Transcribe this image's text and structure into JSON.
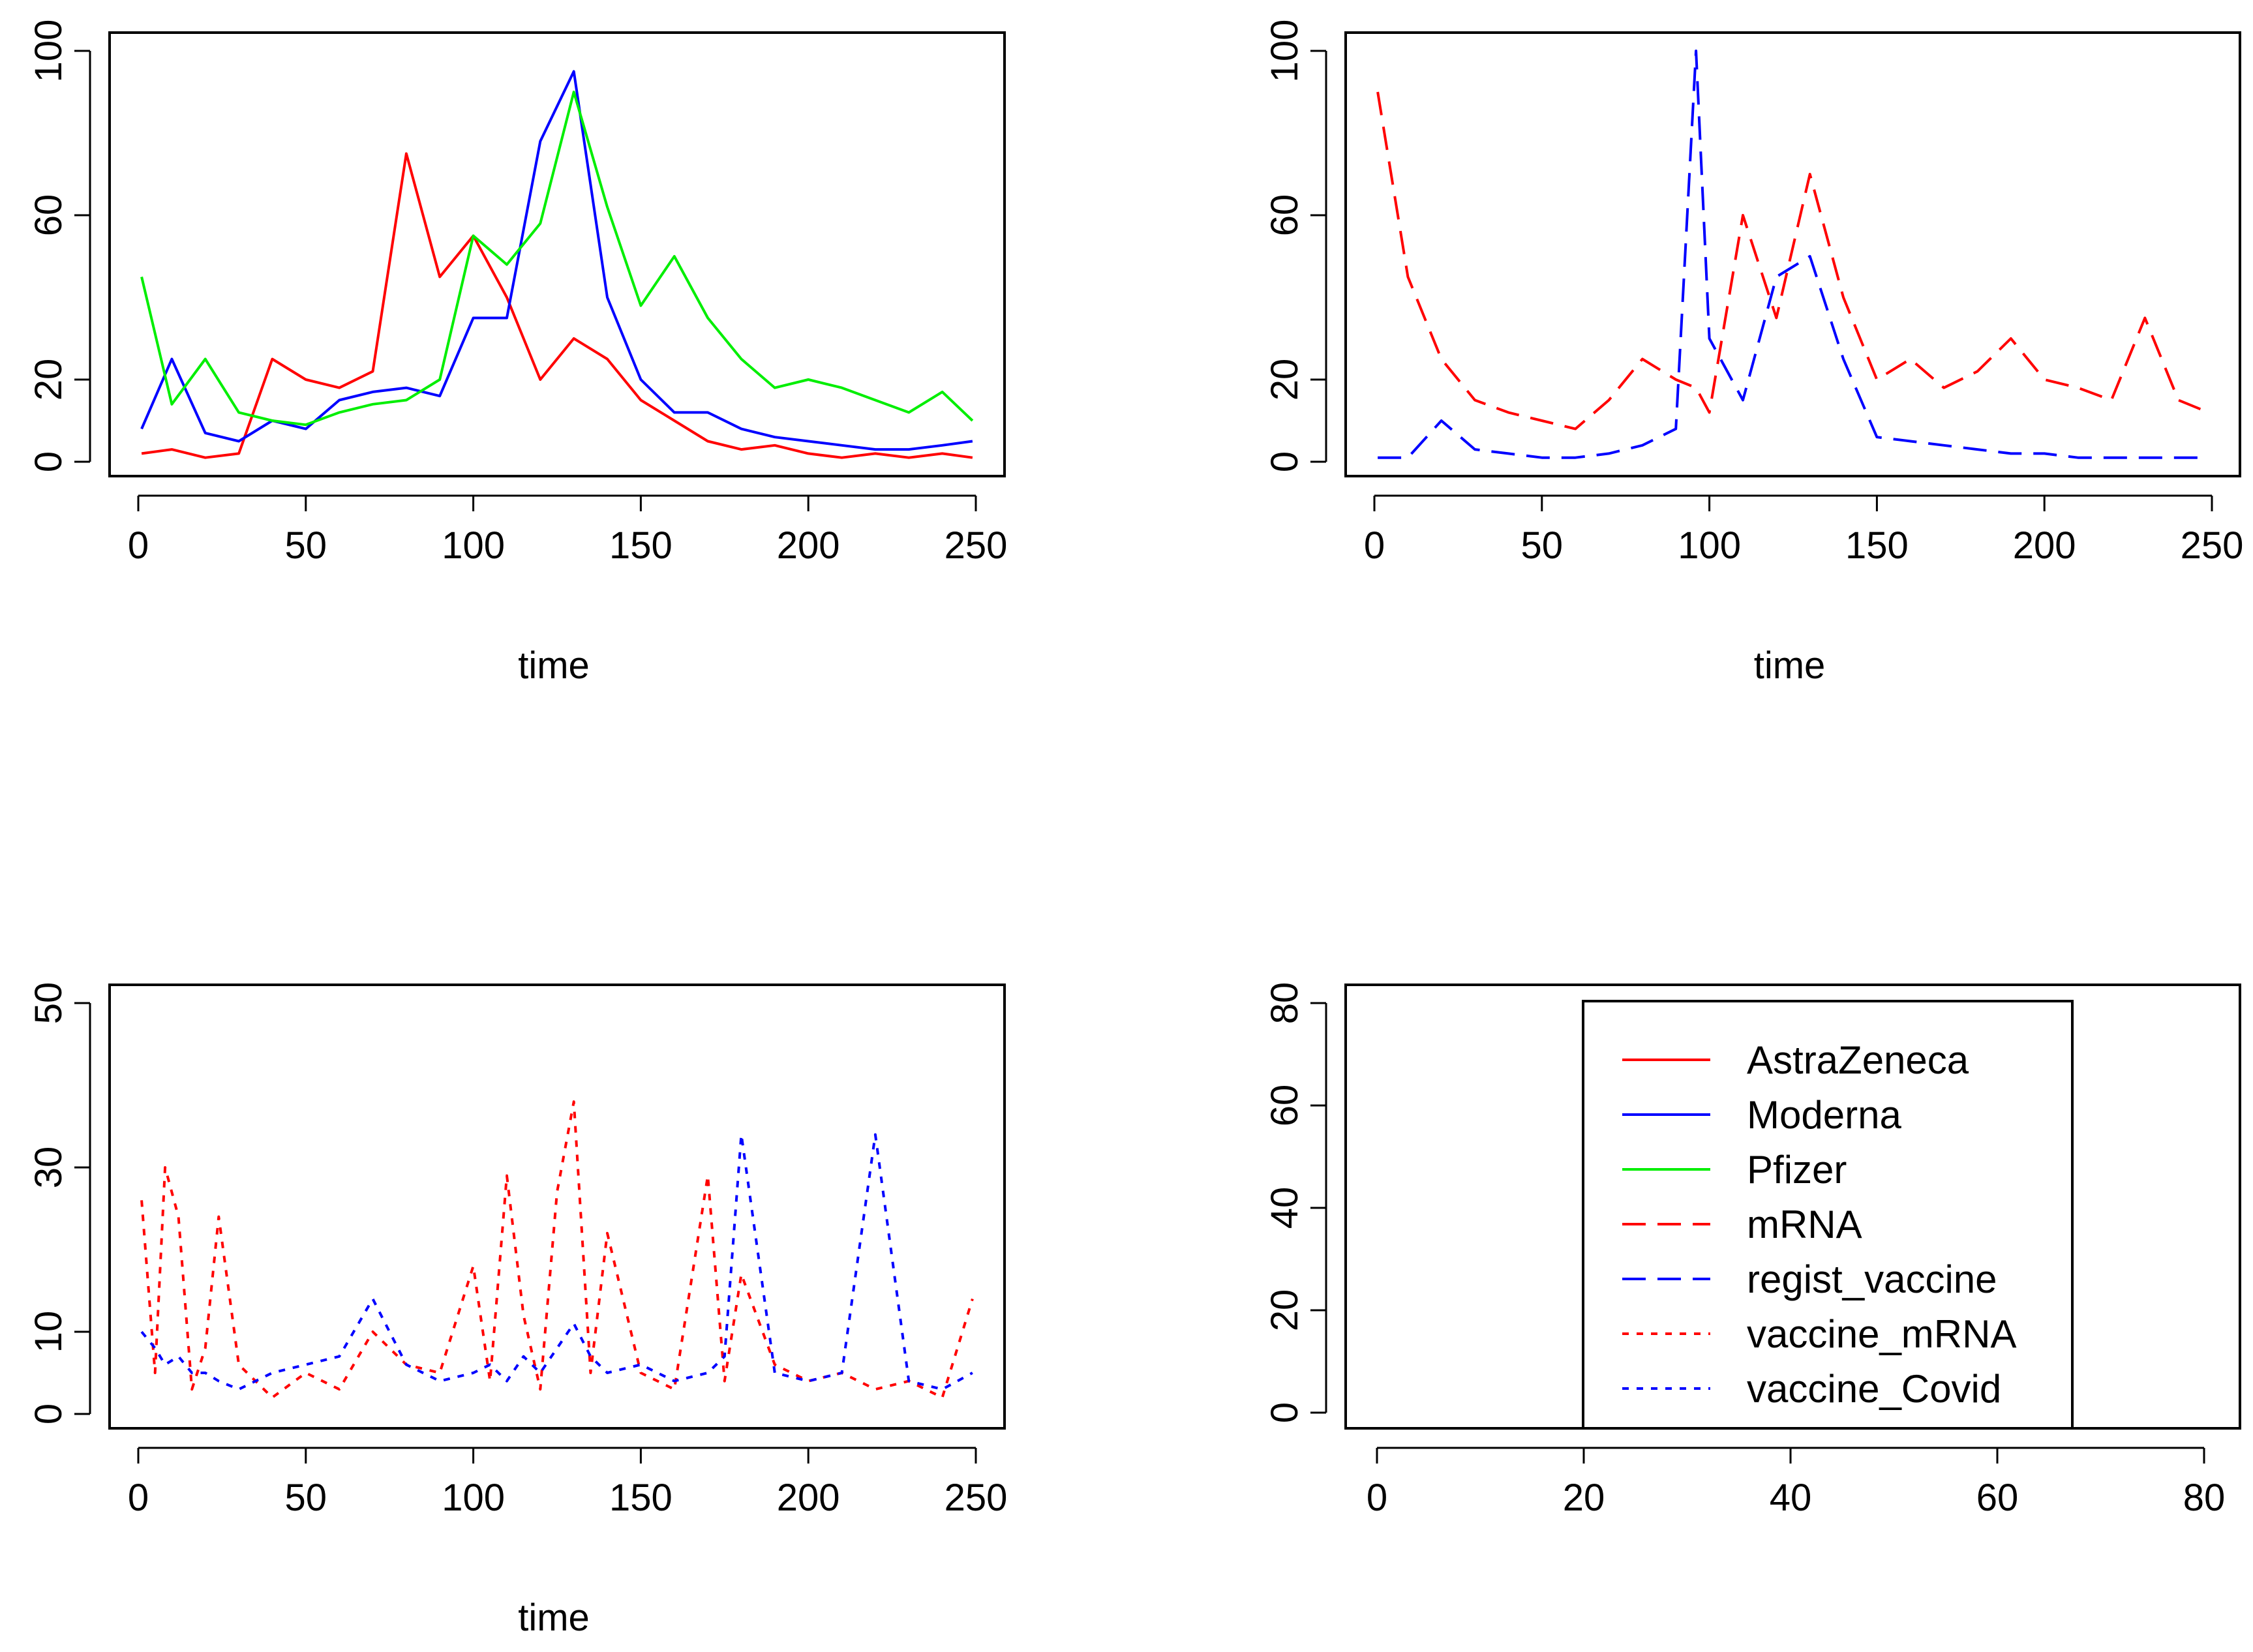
{
  "chart_data": [
    {
      "type": "line",
      "panel": "top-left",
      "xlabel": "time",
      "ylabel": "",
      "xlim": [
        0,
        250
      ],
      "ylim": [
        0,
        100
      ],
      "xticks": [
        "0",
        "50",
        "100",
        "150",
        "200",
        "250"
      ],
      "yticks": [
        "0",
        "20",
        "60",
        "100"
      ],
      "ytick_values": [
        0,
        20,
        60,
        100
      ],
      "x": [
        1,
        10,
        20,
        30,
        40,
        50,
        60,
        70,
        80,
        90,
        100,
        110,
        120,
        130,
        140,
        150,
        160,
        170,
        180,
        190,
        200,
        210,
        220,
        230,
        240,
        249
      ],
      "series": [
        {
          "name": "AstraZeneca",
          "color": "#ff0000",
          "dash": "solid",
          "values": [
            2,
            3,
            1,
            2,
            25,
            20,
            18,
            22,
            75,
            45,
            55,
            40,
            20,
            30,
            25,
            15,
            10,
            5,
            3,
            4,
            2,
            1,
            2,
            1,
            2,
            1
          ]
        },
        {
          "name": "Moderna",
          "color": "#0000ff",
          "dash": "solid",
          "values": [
            8,
            25,
            7,
            5,
            10,
            8,
            15,
            17,
            18,
            16,
            35,
            35,
            78,
            95,
            40,
            20,
            12,
            12,
            8,
            6,
            5,
            4,
            3,
            3,
            4,
            5
          ]
        },
        {
          "name": "Pfizer",
          "color": "#00ee00",
          "dash": "solid",
          "values": [
            45,
            14,
            25,
            12,
            10,
            9,
            12,
            14,
            15,
            20,
            55,
            48,
            58,
            90,
            62,
            38,
            50,
            35,
            25,
            18,
            20,
            18,
            15,
            12,
            17,
            10
          ]
        }
      ]
    },
    {
      "type": "line",
      "panel": "top-right",
      "xlabel": "time",
      "ylabel": "",
      "xlim": [
        0,
        250
      ],
      "ylim": [
        0,
        100
      ],
      "xticks": [
        "0",
        "50",
        "100",
        "150",
        "200",
        "250"
      ],
      "yticks": [
        "0",
        "20",
        "60",
        "100"
      ],
      "ytick_values": [
        0,
        20,
        60,
        100
      ],
      "x": [
        1,
        10,
        20,
        30,
        40,
        50,
        60,
        70,
        80,
        90,
        96,
        100,
        110,
        120,
        130,
        140,
        150,
        160,
        170,
        180,
        190,
        200,
        210,
        220,
        230,
        240,
        249
      ],
      "series": [
        {
          "name": "mRNA",
          "color": "#ff0000",
          "dash": "dashed",
          "values": [
            90,
            45,
            25,
            15,
            12,
            10,
            8,
            15,
            25,
            20,
            18,
            12,
            60,
            35,
            70,
            40,
            20,
            25,
            18,
            22,
            30,
            20,
            18,
            15,
            35,
            15,
            12
          ]
        },
        {
          "name": "regist_vaccine",
          "color": "#0000ff",
          "dash": "dashed",
          "values": [
            1,
            1,
            10,
            3,
            2,
            1,
            1,
            2,
            4,
            8,
            100,
            30,
            15,
            45,
            50,
            25,
            6,
            5,
            4,
            3,
            2,
            2,
            1,
            1,
            1,
            1,
            1
          ]
        }
      ]
    },
    {
      "type": "line",
      "panel": "bottom-left",
      "xlabel": "time",
      "ylabel": "",
      "xlim": [
        0,
        250
      ],
      "ylim": [
        0,
        50
      ],
      "xticks": [
        "0",
        "50",
        "100",
        "150",
        "200",
        "250"
      ],
      "yticks": [
        "0",
        "10",
        "30",
        "50"
      ],
      "ytick_values": [
        0,
        10,
        30,
        50
      ],
      "x": [
        1,
        5,
        8,
        12,
        16,
        20,
        24,
        30,
        40,
        50,
        60,
        70,
        80,
        90,
        100,
        105,
        110,
        115,
        120,
        125,
        130,
        135,
        140,
        150,
        160,
        170,
        175,
        180,
        190,
        200,
        210,
        220,
        230,
        240,
        249
      ],
      "series": [
        {
          "name": "vaccine_mRNA",
          "color": "#ff0000",
          "dash": "dotted",
          "values": [
            26,
            5,
            30,
            24,
            3,
            8,
            24,
            6,
            2,
            5,
            3,
            10,
            6,
            5,
            18,
            4,
            29,
            12,
            3,
            27,
            38,
            5,
            22,
            5,
            3,
            29,
            4,
            17,
            6,
            4,
            5,
            3,
            4,
            2,
            14
          ]
        },
        {
          "name": "vaccine_Covid",
          "color": "#0000ff",
          "dash": "dotted",
          "values": [
            10,
            8,
            6,
            7,
            5,
            5,
            4,
            3,
            5,
            6,
            7,
            14,
            6,
            4,
            5,
            6,
            4,
            7,
            5,
            8,
            11,
            7,
            5,
            6,
            4,
            5,
            7,
            34,
            5,
            4,
            5,
            34,
            4,
            3,
            5
          ]
        }
      ]
    },
    {
      "type": "legend",
      "panel": "bottom-right",
      "xlim": [
        0,
        80
      ],
      "ylim": [
        0,
        80
      ],
      "xticks": [
        "0",
        "20",
        "40",
        "60",
        "80"
      ],
      "yticks": [
        "0",
        "20",
        "40",
        "60",
        "80"
      ],
      "legend_placement": "top-right",
      "legend": [
        {
          "label": "AstraZeneca",
          "color": "#ff0000",
          "dash": "solid"
        },
        {
          "label": "Moderna",
          "color": "#0000ff",
          "dash": "solid"
        },
        {
          "label": "Pfizer",
          "color": "#00ee00",
          "dash": "solid"
        },
        {
          "label": "mRNA",
          "color": "#ff0000",
          "dash": "dashed"
        },
        {
          "label": "regist_vaccine",
          "color": "#0000ff",
          "dash": "dashed"
        },
        {
          "label": "vaccine_mRNA",
          "color": "#ff0000",
          "dash": "dotted"
        },
        {
          "label": "vaccine_Covid",
          "color": "#0000ff",
          "dash": "dotted"
        }
      ]
    }
  ]
}
